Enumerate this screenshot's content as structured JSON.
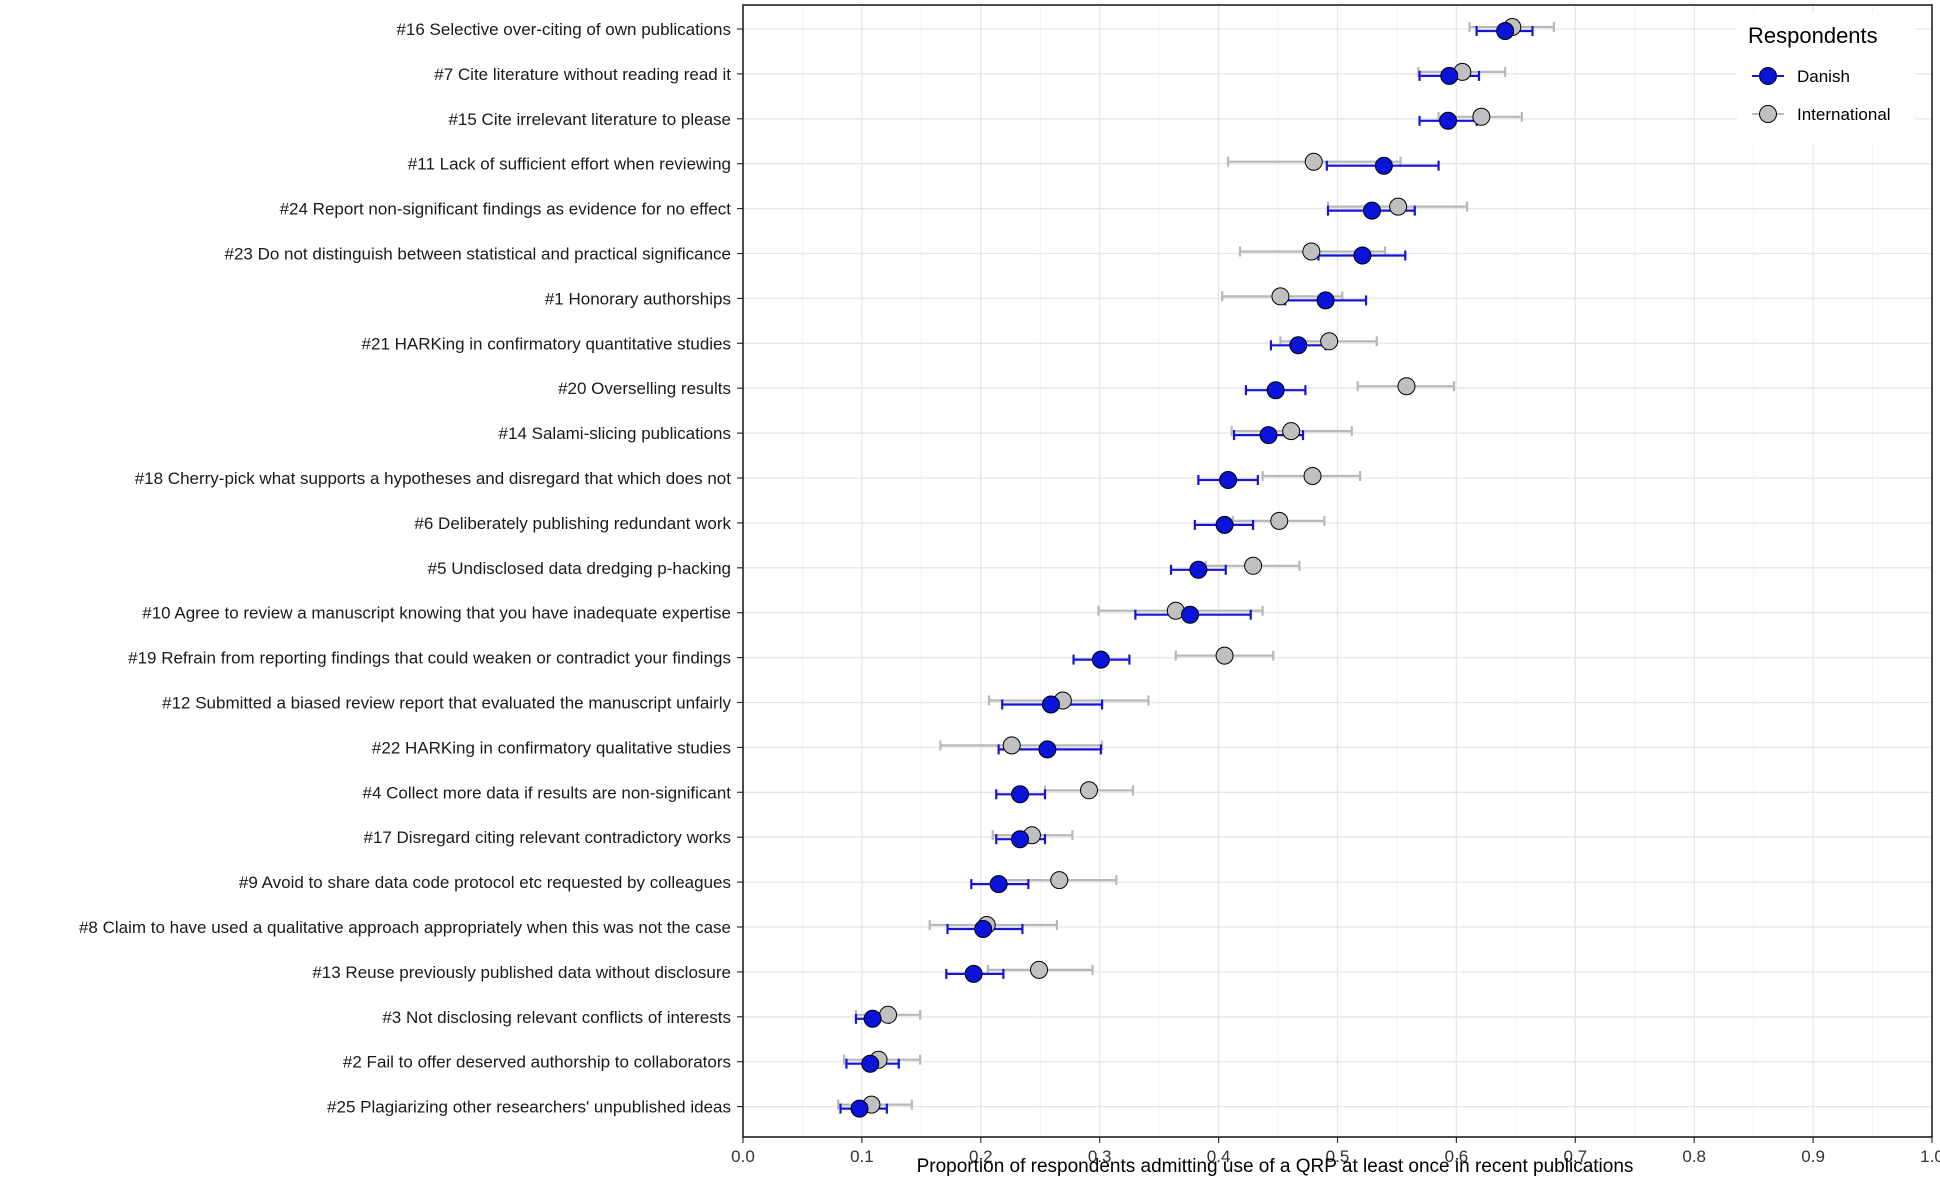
{
  "chart_data": {
    "type": "scatter",
    "title": "",
    "xlabel": "Proportion of respondents admitting use of a QRP at least once in recent publications",
    "ylabel": "",
    "xlim": [
      0.0,
      1.0
    ],
    "xticks": [
      "0.0",
      "0.1",
      "0.2",
      "0.3",
      "0.4",
      "0.5",
      "0.6",
      "0.7",
      "0.8",
      "0.9",
      "1.0"
    ],
    "grid": true,
    "legend": {
      "title": "Respondents",
      "position": "top-right",
      "entries": [
        "Danish",
        "International"
      ]
    },
    "colors": {
      "Danish": "#0a14d8",
      "International": "#c0c0c0",
      "Danish_err": "#1515d8",
      "International_err": "#b8b8b8"
    },
    "categories": [
      "#16 Selective over-citing of own publications",
      "#7 Cite literature without reading read it",
      "#15 Cite irrelevant literature to please",
      "#11 Lack of sufficient effort when reviewing",
      "#24 Report non-significant findings as evidence for no effect",
      "#23 Do not distinguish between statistical and practical significance",
      "#1 Honorary authorships",
      "#21 HARKing in confirmatory quantitative studies",
      "#20 Overselling results",
      "#14 Salami-slicing publications",
      "#18 Cherry-pick what supports a hypotheses and disregard that which does not",
      "#6 Deliberately publishing redundant work",
      "#5 Undisclosed data dredging p-hacking",
      "#10 Agree to review a manuscript knowing that you have inadequate expertise",
      "#19 Refrain from reporting findings that could weaken or contradict your findings",
      "#12 Submitted a biased review report that evaluated the manuscript unfairly",
      "#22 HARKing in confirmatory qualitative studies",
      "#4 Collect more data if results are non-significant",
      "#17 Disregard citing relevant contradictory works",
      "#9 Avoid to share data code protocol etc requested by colleagues",
      "#8 Claim to have used a qualitative approach appropriately when this was not the case",
      "#13 Reuse previously published data without disclosure",
      "#3 Not disclosing relevant conflicts of interests ",
      "#2 Fail to offer deserved authorship to collaborators",
      "#25 Plagiarizing other researchers' unpublished ideas"
    ],
    "series": [
      {
        "name": "Danish",
        "values": [
          0.641,
          0.594,
          0.593,
          0.539,
          0.529,
          0.521,
          0.49,
          0.467,
          0.448,
          0.442,
          0.408,
          0.405,
          0.383,
          0.376,
          0.301,
          0.259,
          0.256,
          0.233,
          0.233,
          0.215,
          0.202,
          0.194,
          0.109,
          0.107,
          0.098
        ],
        "lower": [
          0.617,
          0.569,
          0.569,
          0.491,
          0.492,
          0.484,
          0.456,
          0.444,
          0.423,
          0.413,
          0.383,
          0.38,
          0.36,
          0.33,
          0.278,
          0.218,
          0.215,
          0.213,
          0.213,
          0.192,
          0.172,
          0.171,
          0.095,
          0.087,
          0.082
        ],
        "upper": [
          0.664,
          0.619,
          0.617,
          0.585,
          0.565,
          0.557,
          0.524,
          0.49,
          0.473,
          0.471,
          0.433,
          0.429,
          0.406,
          0.427,
          0.325,
          0.302,
          0.301,
          0.254,
          0.254,
          0.24,
          0.235,
          0.219,
          0.123,
          0.131,
          0.121
        ]
      },
      {
        "name": "International",
        "values": [
          0.647,
          0.605,
          0.621,
          0.48,
          0.551,
          0.478,
          0.452,
          0.493,
          0.558,
          0.461,
          0.479,
          0.451,
          0.429,
          0.364,
          0.405,
          0.269,
          0.226,
          0.291,
          0.243,
          0.266,
          0.205,
          0.249,
          0.122,
          0.114,
          0.108
        ],
        "lower": [
          0.611,
          0.568,
          0.585,
          0.408,
          0.492,
          0.418,
          0.403,
          0.452,
          0.517,
          0.411,
          0.437,
          0.412,
          0.389,
          0.299,
          0.364,
          0.207,
          0.166,
          0.254,
          0.21,
          0.216,
          0.157,
          0.206,
          0.095,
          0.085,
          0.08
        ],
        "upper": [
          0.682,
          0.641,
          0.655,
          0.553,
          0.609,
          0.54,
          0.504,
          0.533,
          0.598,
          0.512,
          0.519,
          0.489,
          0.468,
          0.437,
          0.446,
          0.341,
          0.302,
          0.328,
          0.277,
          0.314,
          0.264,
          0.294,
          0.149,
          0.149,
          0.142
        ]
      }
    ]
  }
}
